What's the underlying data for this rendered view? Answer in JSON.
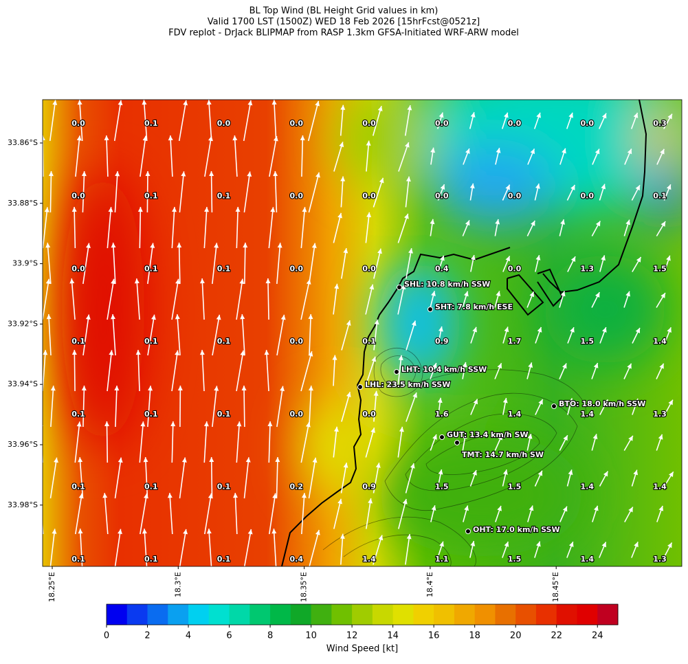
{
  "title": {
    "lines": [
      "BL Top Wind (BL Height Grid values in km)",
      "Valid 1700 LST (1500Z) WED 18 Feb 2026 [15hrFcst@0521z]",
      "FDV replot - DrJack BLIPMAP from RASP 1.3km GFSA-Initiated WRF-ARW model"
    ]
  },
  "map": {
    "lat_ticks": [
      "33.86°S",
      "33.88°S",
      "33.9°S",
      "33.92°S",
      "33.94°S",
      "33.96°S",
      "33.98°S"
    ],
    "lon_ticks": [
      "18.25°E",
      "18.3°E",
      "18.35°E",
      "18.4°E",
      "18.45°E"
    ],
    "grid_values": [
      [
        "0.0",
        "0.1",
        "0.0",
        "0.0",
        "0.0",
        "0.0",
        "0.0",
        "0.0",
        "0.3"
      ],
      [
        "0.0",
        "0.1",
        "0.1",
        "0.0",
        "0.0",
        "0.0",
        "0.0",
        "0.0",
        "0.1"
      ],
      [
        "0.0",
        "0.1",
        "0.1",
        "0.0",
        "0.0",
        "0.4",
        "0.0",
        "1.3",
        "1.5"
      ],
      [
        "0.1",
        "0.1",
        "0.1",
        "0.0",
        "0.1",
        "0.9",
        "1.7",
        "1.5",
        "1.4"
      ],
      [
        "0.1",
        "0.1",
        "0.1",
        "0.0",
        "0.0",
        "1.6",
        "1.4",
        "1.4",
        "1.3"
      ],
      [
        "0.1",
        "0.1",
        "0.1",
        "0.2",
        "0.9",
        "1.5",
        "1.5",
        "1.4",
        "1.4"
      ],
      [
        "0.1",
        "0.1",
        "0.1",
        "0.4",
        "1.4",
        "1.1",
        "1.5",
        "1.4",
        "1.3"
      ]
    ],
    "stations": [
      {
        "label": "SHL: 10.8 km/h SSW"
      },
      {
        "label": "SHT: 7.8 km/h ESE"
      },
      {
        "label": "LHT: 10.4 km/h SSW"
      },
      {
        "label": "LHL: 23.5 km/h SSW"
      },
      {
        "label": "BTO: 18.0 km/h SSW"
      },
      {
        "label": "GUT: 13.4 km/h SW"
      },
      {
        "label": "TMT: 14.7 km/h SW"
      },
      {
        "label": "OHT: 17.0 km/h SSW"
      }
    ]
  },
  "colorbar": {
    "label": "Wind Speed [kt]",
    "lim": [
      0,
      25
    ],
    "ticks": [
      0,
      2,
      4,
      6,
      8,
      10,
      12,
      14,
      16,
      18,
      20,
      22,
      24
    ],
    "colors": [
      "#0000f0",
      "#0a3af0",
      "#0a6cf0",
      "#0aa0f0",
      "#00d0f0",
      "#00e0d0",
      "#00d8a8",
      "#00c870",
      "#00b848",
      "#10a828",
      "#40b010",
      "#70c000",
      "#a0cc00",
      "#c8d800",
      "#e0e000",
      "#f0d000",
      "#f0c000",
      "#f0a800",
      "#f09000",
      "#e87000",
      "#e85000",
      "#e83000",
      "#e01000",
      "#e00000",
      "#c00020"
    ]
  }
}
